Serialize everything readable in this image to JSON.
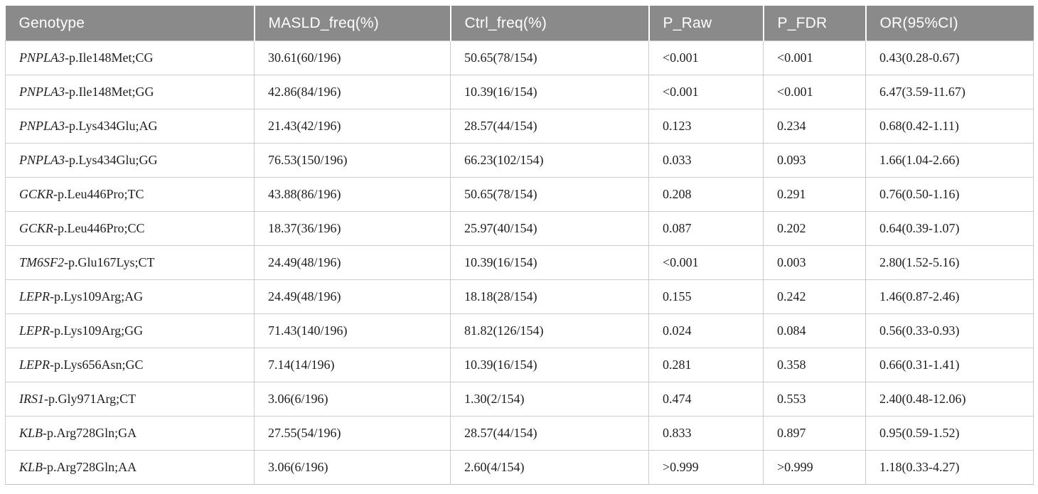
{
  "table": {
    "title_semantic": "genotype-association-table",
    "columns": [
      {
        "key": "genotype",
        "label": "Genotype"
      },
      {
        "key": "masld",
        "label": "MASLD_freq(%)"
      },
      {
        "key": "ctrl",
        "label": "Ctrl_freq(%)"
      },
      {
        "key": "p_raw",
        "label": "P_Raw"
      },
      {
        "key": "p_fdr",
        "label": "P_FDR"
      },
      {
        "key": "or",
        "label": "OR(95%CI)"
      }
    ],
    "rows": [
      {
        "gene": "PNPLA3",
        "variant": "-p.Ile148Met;CG",
        "masld": "30.61(60/196)",
        "ctrl": "50.65(78/154)",
        "p_raw": "<0.001",
        "p_fdr": "<0.001",
        "or": "0.43(0.28-0.67)"
      },
      {
        "gene": "PNPLA3",
        "variant": "-p.Ile148Met;GG",
        "masld": "42.86(84/196)",
        "ctrl": "10.39(16/154)",
        "p_raw": "<0.001",
        "p_fdr": "<0.001",
        "or": "6.47(3.59-11.67)"
      },
      {
        "gene": "PNPLA3",
        "variant": "-p.Lys434Glu;AG",
        "masld": "21.43(42/196)",
        "ctrl": "28.57(44/154)",
        "p_raw": "0.123",
        "p_fdr": "0.234",
        "or": "0.68(0.42-1.11)"
      },
      {
        "gene": "PNPLA3",
        "variant": "-p.Lys434Glu;GG",
        "masld": "76.53(150/196)",
        "ctrl": "66.23(102/154)",
        "p_raw": "0.033",
        "p_fdr": "0.093",
        "or": "1.66(1.04-2.66)"
      },
      {
        "gene": "GCKR",
        "variant": "-p.Leu446Pro;TC",
        "masld": "43.88(86/196)",
        "ctrl": "50.65(78/154)",
        "p_raw": "0.208",
        "p_fdr": "0.291",
        "or": "0.76(0.50-1.16)"
      },
      {
        "gene": "GCKR",
        "variant": "-p.Leu446Pro;CC",
        "masld": "18.37(36/196)",
        "ctrl": "25.97(40/154)",
        "p_raw": "0.087",
        "p_fdr": "0.202",
        "or": "0.64(0.39-1.07)"
      },
      {
        "gene": "TM6SF2",
        "variant": "-p.Glu167Lys;CT",
        "masld": "24.49(48/196)",
        "ctrl": "10.39(16/154)",
        "p_raw": "<0.001",
        "p_fdr": "0.003",
        "or": "2.80(1.52-5.16)"
      },
      {
        "gene": "LEPR",
        "variant": "-p.Lys109Arg;AG",
        "masld": "24.49(48/196)",
        "ctrl": "18.18(28/154)",
        "p_raw": "0.155",
        "p_fdr": "0.242",
        "or": "1.46(0.87-2.46)"
      },
      {
        "gene": "LEPR",
        "variant": "-p.Lys109Arg;GG",
        "masld": "71.43(140/196)",
        "ctrl": "81.82(126/154)",
        "p_raw": "0.024",
        "p_fdr": "0.084",
        "or": "0.56(0.33-0.93)"
      },
      {
        "gene": "LEPR",
        "variant": "-p.Lys656Asn;GC",
        "masld": "7.14(14/196)",
        "ctrl": "10.39(16/154)",
        "p_raw": "0.281",
        "p_fdr": "0.358",
        "or": "0.66(0.31-1.41)"
      },
      {
        "gene": "IRS1",
        "variant": "-p.Gly971Arg;CT",
        "masld": "3.06(6/196)",
        "ctrl": "1.30(2/154)",
        "p_raw": "0.474",
        "p_fdr": "0.553",
        "or": "2.40(0.48-12.06)"
      },
      {
        "gene": "KLB",
        "variant": "-p.Arg728Gln;GA",
        "masld": "27.55(54/196)",
        "ctrl": "28.57(44/154)",
        "p_raw": "0.833",
        "p_fdr": "0.897",
        "or": "0.95(0.59-1.52)"
      },
      {
        "gene": "KLB",
        "variant": "-p.Arg728Gln;AA",
        "masld": "3.06(6/196)",
        "ctrl": "2.60(4/154)",
        "p_raw": ">0.999",
        "p_fdr": ">0.999",
        "or": "1.18(0.33-4.27)"
      }
    ]
  },
  "colors": {
    "header_bg": "#8a8a8a",
    "header_text": "#ffffff",
    "grid_line": "#cccccc",
    "body_text": "#1e1e1e"
  }
}
